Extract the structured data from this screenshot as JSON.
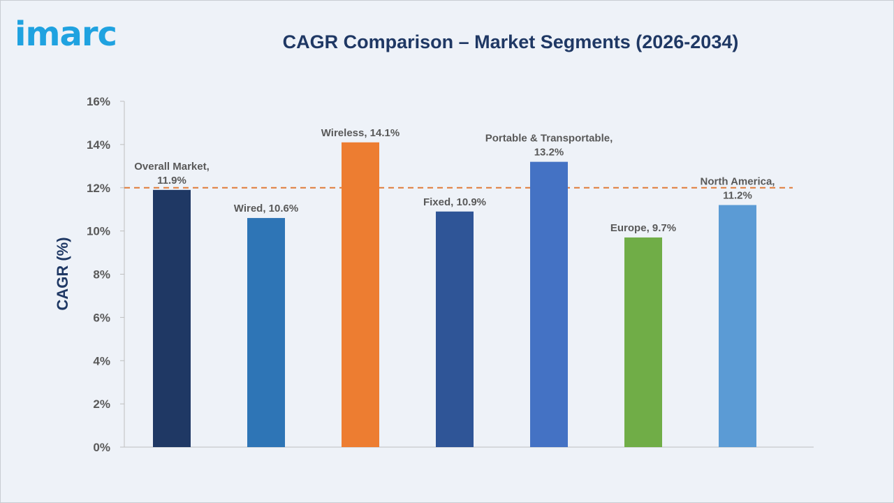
{
  "brand": {
    "logo_text": "imarc",
    "logo_color": "#1fa2e0"
  },
  "chart_data": {
    "type": "bar",
    "title": "CAGR Comparison – Market Segments (2026-2034)",
    "xlabel": "",
    "ylabel": "CAGR (%)",
    "ylim": [
      0,
      16
    ],
    "yticks": [
      0,
      2,
      4,
      6,
      8,
      10,
      12,
      14,
      16
    ],
    "ytick_labels": [
      "0%",
      "2%",
      "4%",
      "6%",
      "8%",
      "10%",
      "12%",
      "14%",
      "16%"
    ],
    "grid": false,
    "legend": "none",
    "reference_line": {
      "value": 12,
      "style": "dashed",
      "color": "#e07b39"
    },
    "categories": [
      "Overall Market",
      "Wired",
      "Wireless",
      "Fixed",
      "Portable & Transportable",
      "Europe",
      "North America"
    ],
    "values": [
      11.9,
      10.6,
      14.1,
      10.9,
      13.2,
      9.7,
      11.2
    ],
    "data_labels": [
      [
        "Overall Market,",
        "11.9%"
      ],
      [
        "Wired, 10.6%"
      ],
      [
        "Wireless, 14.1%"
      ],
      [
        "Fixed, 10.9%"
      ],
      [
        "Portable & Transportable,",
        "13.2%"
      ],
      [
        "Europe, 9.7%"
      ],
      [
        "North America,",
        "11.2%"
      ]
    ],
    "colors": [
      "#1f3864",
      "#2e75b6",
      "#ed7d31",
      "#2f5597",
      "#4472c4",
      "#70ad47",
      "#5b9bd5"
    ]
  }
}
